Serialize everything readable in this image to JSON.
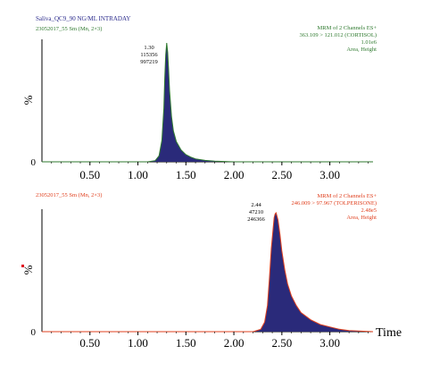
{
  "panels": [
    {
      "header_left": "Saliva_QC9_90 NG/ML INTRADAY",
      "header_left2": "23052017_55 Sm (Mn, 2×3)",
      "header_right": [
        "MRM of 2 Channels ES+",
        "363.109 > 121.012 (CORTISOL)",
        "1.01e6",
        "Area, Height"
      ],
      "peak_labels": [
        "1.30",
        "115356",
        "997219"
      ],
      "ylabel": "%",
      "y_ticks": [
        "0"
      ],
      "x_ticks": [
        "0.50",
        "1.00",
        "1.50",
        "2.00",
        "2.50",
        "3.00"
      ],
      "header_color": "#2f7a2f"
    },
    {
      "header_left": "",
      "header_left2": "23052017_55 Sm (Mn, 2×3)",
      "header_right": [
        "MRM of 2 Channels ES+",
        "246.009 > 97.967 (TOLPERISONE)",
        "2.48e5",
        "Area, Height"
      ],
      "peak_labels": [
        "2.44",
        "47210",
        "246366"
      ],
      "ylabel": "%",
      "y_ticks": [
        "0"
      ],
      "x_ticks": [
        "0.50",
        "1.00",
        "1.50",
        "2.00",
        "2.50",
        "3.00"
      ],
      "xlabel": "Time",
      "header_color": "#e0401f"
    }
  ],
  "chart_data": [
    {
      "type": "area",
      "title": "Saliva_QC9_90 NG/ML INTRADAY",
      "xlabel": "",
      "ylabel": "%",
      "xlim": [
        0,
        3.45
      ],
      "ylim": [
        0,
        100
      ],
      "grid": false,
      "fill_color": "#2a2a7a",
      "line_color": "#2f7a2f",
      "x": [
        0.0,
        1.1,
        1.18,
        1.22,
        1.25,
        1.27,
        1.28,
        1.29,
        1.3,
        1.31,
        1.32,
        1.33,
        1.35,
        1.37,
        1.4,
        1.45,
        1.5,
        1.55,
        1.6,
        1.7,
        1.8,
        2.0,
        3.45
      ],
      "y": [
        0,
        0,
        1,
        5,
        18,
        45,
        70,
        90,
        100,
        92,
        78,
        60,
        38,
        26,
        17,
        10,
        6,
        4,
        2.5,
        1.2,
        0.5,
        0,
        0
      ]
    },
    {
      "type": "area",
      "title": "",
      "xlabel": "Time",
      "ylabel": "%",
      "xlim": [
        0,
        3.45
      ],
      "ylim": [
        0,
        100
      ],
      "grid": false,
      "fill_color": "#2a2a7a",
      "line_color": "#e0401f",
      "x": [
        0.0,
        2.2,
        2.28,
        2.32,
        2.35,
        2.37,
        2.39,
        2.41,
        2.42,
        2.43,
        2.44,
        2.46,
        2.48,
        2.5,
        2.53,
        2.56,
        2.6,
        2.65,
        2.7,
        2.8,
        2.9,
        3.0,
        3.1,
        3.2,
        3.45
      ],
      "y": [
        0,
        0,
        2,
        8,
        22,
        45,
        70,
        88,
        96,
        99,
        100,
        94,
        82,
        68,
        52,
        40,
        30,
        22,
        16,
        10,
        6,
        4,
        2,
        1,
        0
      ]
    }
  ]
}
